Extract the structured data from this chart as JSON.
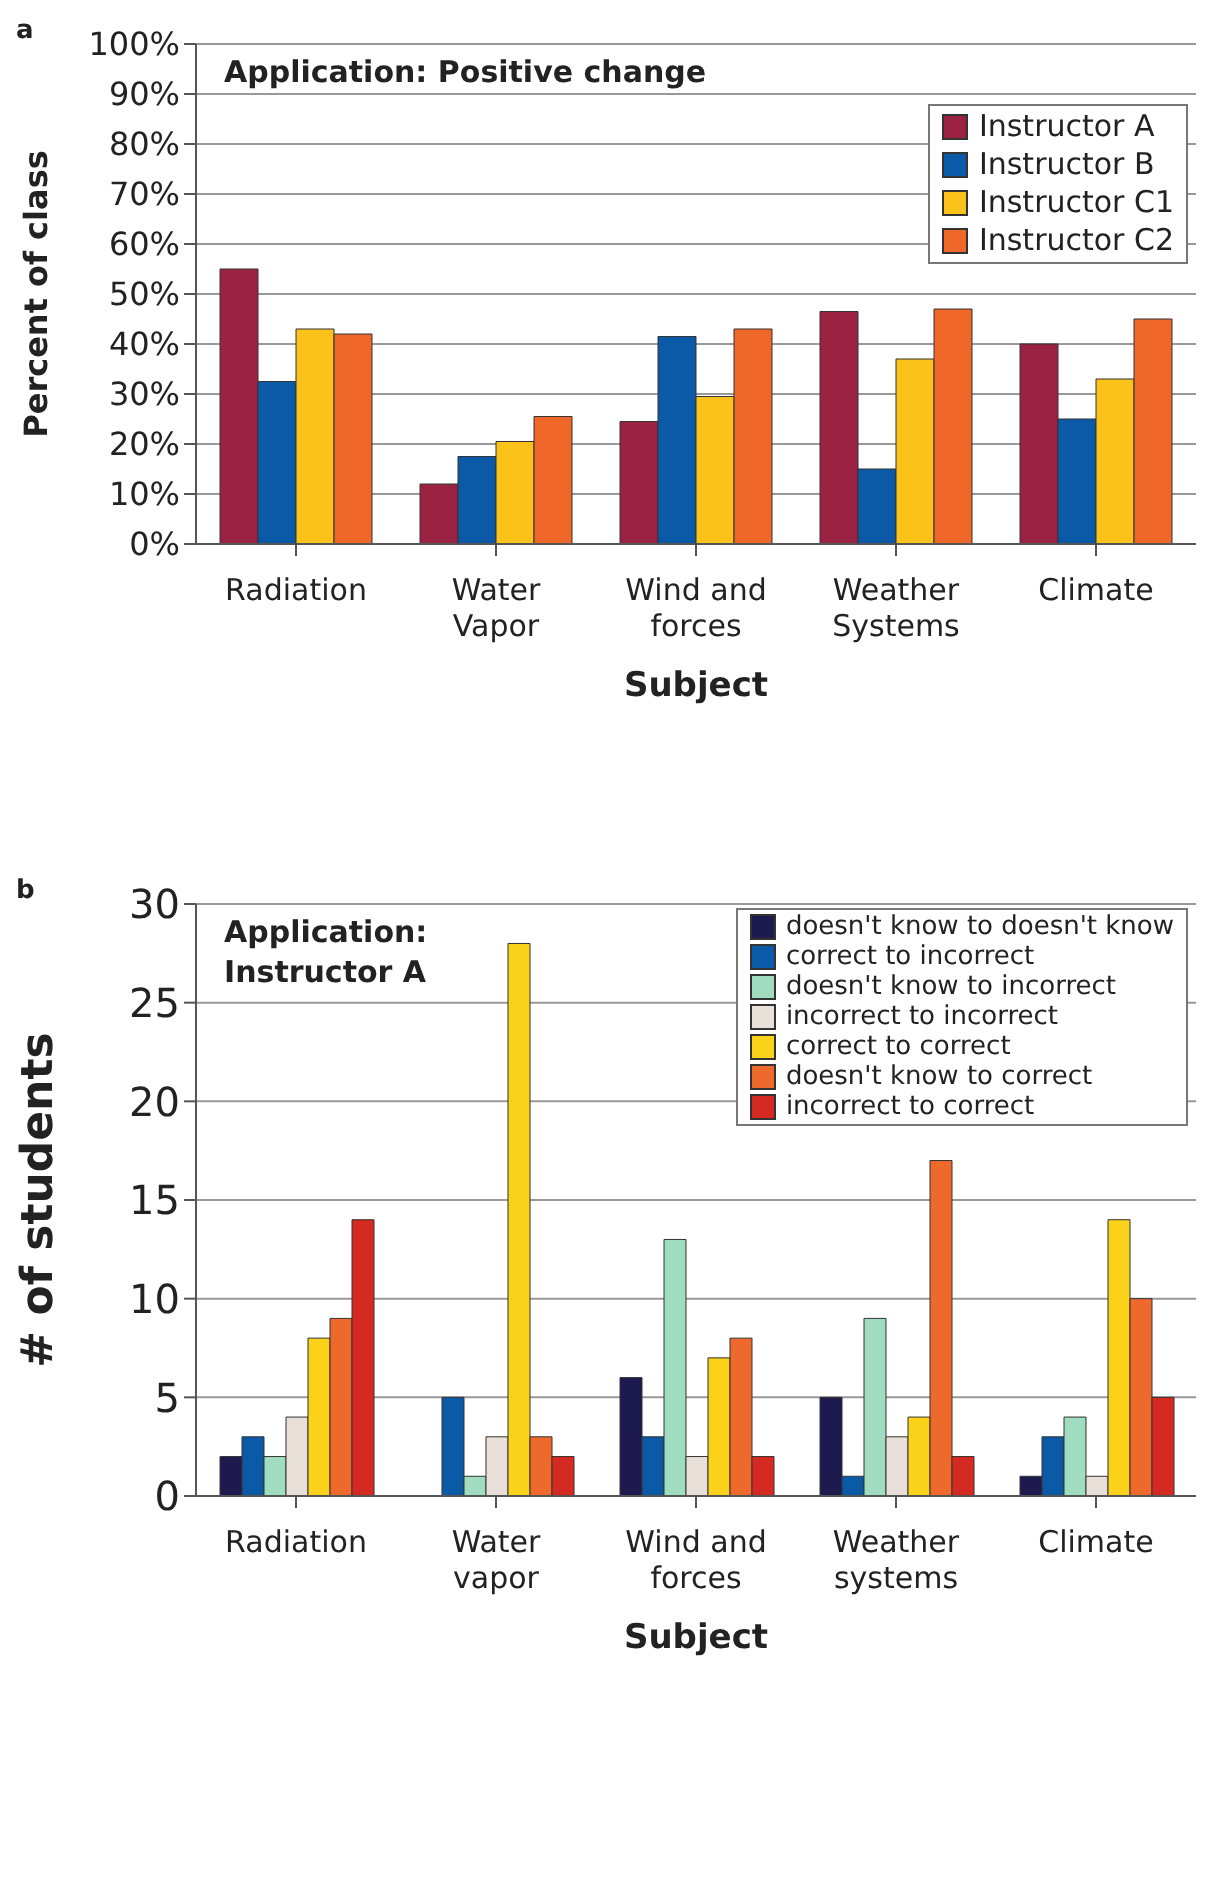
{
  "chart_data": [
    {
      "type": "bar",
      "title": "Application: Positive change",
      "xlabel": "Subject",
      "ylabel": "Percent of class",
      "annotations": [
        "a"
      ],
      "categories": [
        "Radiation",
        "Water Vapor",
        "Wind and forces",
        "Weather Systems",
        "Climate"
      ],
      "series": [
        {
          "name": "Instructor A",
          "color": "#9b2242",
          "values": [
            55,
            12,
            24.5,
            46.5,
            40
          ]
        },
        {
          "name": "Instructor B",
          "color": "#0b5aa8",
          "values": [
            32.5,
            17.5,
            41.5,
            15,
            25
          ]
        },
        {
          "name": "Instructor C1",
          "color": "#fbc21a",
          "values": [
            43,
            20.5,
            29.5,
            37,
            33
          ]
        },
        {
          "name": "Instructor C2",
          "color": "#f0672a",
          "values": [
            42,
            25.5,
            43,
            47,
            45
          ]
        }
      ],
      "ylim": [
        0,
        100
      ],
      "yticks": [
        {
          "value": 0,
          "label": "0%"
        },
        {
          "value": 10,
          "label": "10%"
        },
        {
          "value": 20,
          "label": "20%"
        },
        {
          "value": 30,
          "label": "30%"
        },
        {
          "value": 40,
          "label": "40%"
        },
        {
          "value": 50,
          "label": "50%"
        },
        {
          "value": 60,
          "label": "60%"
        },
        {
          "value": 70,
          "label": "70%"
        },
        {
          "value": 80,
          "label": "80%"
        },
        {
          "value": 90,
          "label": "90%"
        },
        {
          "value": 100,
          "label": "100%"
        }
      ],
      "grid": "y",
      "legend": "top right"
    },
    {
      "type": "bar",
      "title": "Application:\nInstructor A",
      "xlabel": "Subject",
      "ylabel": "# of students",
      "annotations": [
        "b"
      ],
      "categories": [
        "Radiation",
        "Water vapor",
        "Wind and forces",
        "Weather systems",
        "Climate"
      ],
      "series": [
        {
          "name": "doesn't know to doesn't know",
          "color": "#1c1a4f",
          "values": [
            2,
            0,
            6,
            5,
            1
          ]
        },
        {
          "name": "correct to incorrect",
          "color": "#0b5aa8",
          "values": [
            3,
            5,
            3,
            1,
            3
          ]
        },
        {
          "name": "doesn't know to incorrect",
          "color": "#9fdcc0",
          "values": [
            2,
            1,
            13,
            9,
            4
          ]
        },
        {
          "name": "incorrect to incorrect",
          "color": "#e8dfd8",
          "values": [
            4,
            3,
            2,
            3,
            1
          ]
        },
        {
          "name": "correct to correct",
          "color": "#fbd21a",
          "values": [
            8,
            28,
            7,
            4,
            14
          ]
        },
        {
          "name": "doesn't know to correct",
          "color": "#ee6a2c",
          "values": [
            9,
            3,
            8,
            17,
            10
          ]
        },
        {
          "name": "incorrect to correct",
          "color": "#d42a22",
          "values": [
            14,
            2,
            2,
            2,
            5
          ]
        }
      ],
      "ylim": [
        0,
        30
      ],
      "yticks": [
        0,
        5,
        10,
        15,
        20,
        25,
        30
      ],
      "grid": "y",
      "legend": "top right"
    }
  ]
}
